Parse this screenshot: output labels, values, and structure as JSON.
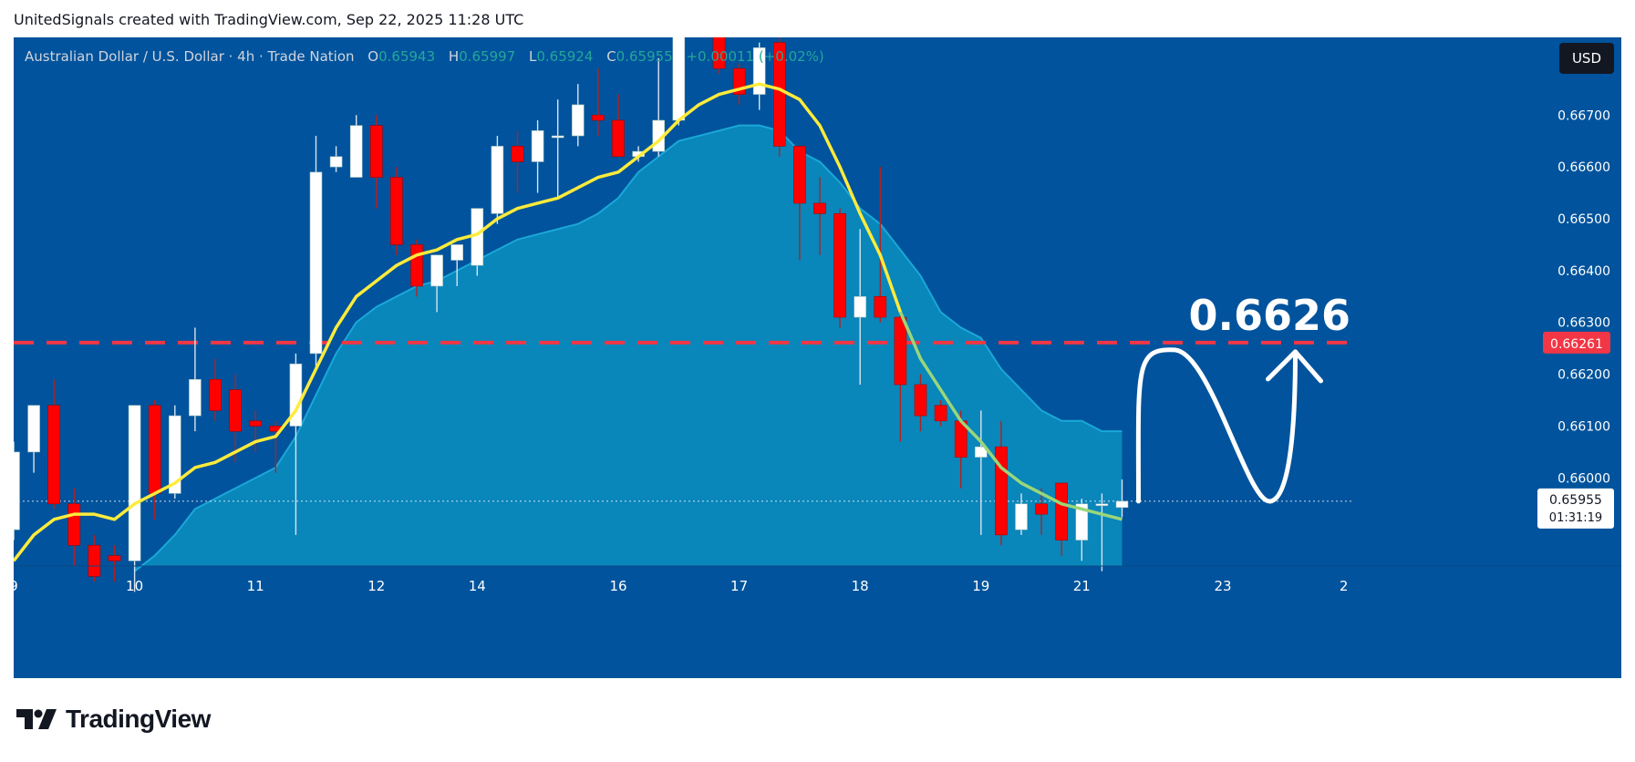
{
  "caption": "UnitedSignals created with TradingView.com, Sep 22, 2025 11:28 UTC",
  "legend": {
    "symbol": "Australian Dollar / U.S. Dollar · 4h · Trade Nation",
    "o_label": "O",
    "o_value": "0.65943",
    "h_label": "H",
    "h_value": "0.65997",
    "l_label": "L",
    "l_value": "0.65924",
    "c_label": "C",
    "c_value": "0.65955",
    "change": "+0.00011 (+0.02%)"
  },
  "currency_button": "USD",
  "footer_brand": "TradingView",
  "colors": {
    "background": "#00539c",
    "up": "#ffffff",
    "down": "#ff0000",
    "ema_fast": "#ffeb3b",
    "ema_fast_late": "#9ad67a",
    "cloud_fill": "#0a8fc0",
    "cloud_edge": "#1aa8d8",
    "level_line": "#f23645",
    "last_price_line": "#ffffff"
  },
  "chart_data": {
    "type": "candlestick",
    "y_axis": {
      "tick_labels": [
        "0.66700",
        "0.66600",
        "0.66500",
        "0.66400",
        "0.66300",
        "0.66200",
        "0.66100",
        "0.66000"
      ],
      "range": [
        0.6583,
        0.6685
      ]
    },
    "x_axis": {
      "tick_labels": [
        "9",
        "10",
        "11",
        "12",
        "14",
        "16",
        "17",
        "18",
        "19",
        "21",
        "23",
        "2"
      ]
    },
    "resistance_level": {
      "value": 0.66261,
      "label": "0.66261",
      "annotation": "0.6626"
    },
    "last_price": {
      "value": 0.65955,
      "label": "0.65955",
      "countdown": "01:31:19"
    },
    "candles": [
      {
        "o": 0.659,
        "h": 0.6607,
        "l": 0.6588,
        "c": 0.6605
      },
      {
        "o": 0.6605,
        "h": 0.6614,
        "l": 0.6601,
        "c": 0.6614
      },
      {
        "o": 0.6614,
        "h": 0.6619,
        "l": 0.6594,
        "c": 0.6595
      },
      {
        "o": 0.6595,
        "h": 0.6598,
        "l": 0.6583,
        "c": 0.6587
      },
      {
        "o": 0.6587,
        "h": 0.6589,
        "l": 0.658,
        "c": 0.6581
      },
      {
        "o": 0.6585,
        "h": 0.6587,
        "l": 0.658,
        "c": 0.6584
      },
      {
        "o": 0.6584,
        "h": 0.6614,
        "l": 0.6578,
        "c": 0.6614
      },
      {
        "o": 0.6614,
        "h": 0.6615,
        "l": 0.6592,
        "c": 0.6597
      },
      {
        "o": 0.6597,
        "h": 0.6614,
        "l": 0.6596,
        "c": 0.6612
      },
      {
        "o": 0.6612,
        "h": 0.6629,
        "l": 0.6609,
        "c": 0.6619
      },
      {
        "o": 0.6619,
        "h": 0.6623,
        "l": 0.6611,
        "c": 0.6613
      },
      {
        "o": 0.6617,
        "h": 0.662,
        "l": 0.6603,
        "c": 0.6609
      },
      {
        "o": 0.6611,
        "h": 0.6613,
        "l": 0.6605,
        "c": 0.661
      },
      {
        "o": 0.661,
        "h": 0.6611,
        "l": 0.6601,
        "c": 0.6609
      },
      {
        "o": 0.661,
        "h": 0.6624,
        "l": 0.6589,
        "c": 0.6622
      },
      {
        "o": 0.6624,
        "h": 0.6666,
        "l": 0.6621,
        "c": 0.6659
      },
      {
        "o": 0.666,
        "h": 0.6664,
        "l": 0.6659,
        "c": 0.6662
      },
      {
        "o": 0.6658,
        "h": 0.667,
        "l": 0.6658,
        "c": 0.6668
      },
      {
        "o": 0.6668,
        "h": 0.667,
        "l": 0.6652,
        "c": 0.6658
      },
      {
        "o": 0.6658,
        "h": 0.666,
        "l": 0.6643,
        "c": 0.6645
      },
      {
        "o": 0.6645,
        "h": 0.6646,
        "l": 0.6635,
        "c": 0.6637
      },
      {
        "o": 0.6637,
        "h": 0.6643,
        "l": 0.6632,
        "c": 0.6643
      },
      {
        "o": 0.6642,
        "h": 0.6645,
        "l": 0.6637,
        "c": 0.6645
      },
      {
        "o": 0.6641,
        "h": 0.6652,
        "l": 0.6639,
        "c": 0.6652
      },
      {
        "o": 0.6651,
        "h": 0.6666,
        "l": 0.6649,
        "c": 0.6664
      },
      {
        "o": 0.6664,
        "h": 0.6667,
        "l": 0.6655,
        "c": 0.6661
      },
      {
        "o": 0.6661,
        "h": 0.6669,
        "l": 0.6655,
        "c": 0.6667
      },
      {
        "o": 0.6666,
        "h": 0.6673,
        "l": 0.6654,
        "c": 0.6666
      },
      {
        "o": 0.6666,
        "h": 0.6676,
        "l": 0.6664,
        "c": 0.6672
      },
      {
        "o": 0.667,
        "h": 0.6679,
        "l": 0.6666,
        "c": 0.6669
      },
      {
        "o": 0.6669,
        "h": 0.6674,
        "l": 0.6663,
        "c": 0.6662
      },
      {
        "o": 0.6662,
        "h": 0.6664,
        "l": 0.6661,
        "c": 0.6663
      },
      {
        "o": 0.6663,
        "h": 0.6681,
        "l": 0.6662,
        "c": 0.6669
      },
      {
        "o": 0.6669,
        "h": 0.6691,
        "l": 0.6668,
        "c": 0.6691
      },
      {
        "o": 0.6691,
        "h": 0.6695,
        "l": 0.6686,
        "c": 0.6695
      },
      {
        "o": 0.6691,
        "h": 0.6692,
        "l": 0.6678,
        "c": 0.6679
      },
      {
        "o": 0.6679,
        "h": 0.668,
        "l": 0.6672,
        "c": 0.6674
      },
      {
        "o": 0.6674,
        "h": 0.6684,
        "l": 0.6671,
        "c": 0.6683
      },
      {
        "o": 0.6684,
        "h": 0.6694,
        "l": 0.6662,
        "c": 0.6664
      },
      {
        "o": 0.6664,
        "h": 0.6664,
        "l": 0.6642,
        "c": 0.6653
      },
      {
        "o": 0.6653,
        "h": 0.6658,
        "l": 0.6643,
        "c": 0.6651
      },
      {
        "o": 0.6651,
        "h": 0.6652,
        "l": 0.6629,
        "c": 0.6631
      },
      {
        "o": 0.6631,
        "h": 0.6648,
        "l": 0.6618,
        "c": 0.6635
      },
      {
        "o": 0.6635,
        "h": 0.666,
        "l": 0.663,
        "c": 0.6631
      },
      {
        "o": 0.6631,
        "h": 0.6632,
        "l": 0.6607,
        "c": 0.6618
      },
      {
        "o": 0.6618,
        "h": 0.662,
        "l": 0.6609,
        "c": 0.6612
      },
      {
        "o": 0.6614,
        "h": 0.6615,
        "l": 0.661,
        "c": 0.6611
      },
      {
        "o": 0.6611,
        "h": 0.6613,
        "l": 0.6598,
        "c": 0.6604
      },
      {
        "o": 0.6604,
        "h": 0.6613,
        "l": 0.6589,
        "c": 0.6606
      },
      {
        "o": 0.6606,
        "h": 0.6611,
        "l": 0.6587,
        "c": 0.6589
      },
      {
        "o": 0.659,
        "h": 0.6597,
        "l": 0.6589,
        "c": 0.6595
      },
      {
        "o": 0.6595,
        "h": 0.6598,
        "l": 0.6589,
        "c": 0.6593
      },
      {
        "o": 0.6599,
        "h": 0.6599,
        "l": 0.6585,
        "c": 0.6588
      },
      {
        "o": 0.6588,
        "h": 0.6596,
        "l": 0.6584,
        "c": 0.6595
      },
      {
        "o": 0.6595,
        "h": 0.6597,
        "l": 0.6582,
        "c": 0.6595
      },
      {
        "o": 0.65943,
        "h": 0.65997,
        "l": 0.65924,
        "c": 0.65955
      }
    ],
    "ema_fast": [
      0.6584,
      0.6589,
      0.6592,
      0.6593,
      0.6593,
      0.6592,
      0.6595,
      0.6597,
      0.6599,
      0.6602,
      0.6603,
      0.6605,
      0.6607,
      0.6608,
      0.6613,
      0.6621,
      0.6629,
      0.6635,
      0.6638,
      0.6641,
      0.6643,
      0.6644,
      0.6646,
      0.6647,
      0.665,
      0.6652,
      0.6653,
      0.6654,
      0.6656,
      0.6658,
      0.6659,
      0.6662,
      0.6665,
      0.6669,
      0.6672,
      0.6674,
      0.6675,
      0.6676,
      0.6675,
      0.6673,
      0.6668,
      0.666,
      0.6651,
      0.6643,
      0.6632,
      0.6623,
      0.6617,
      0.6611,
      0.6607,
      0.6602,
      0.6599,
      0.6597,
      0.6595,
      0.6594,
      0.6593,
      0.6592
    ],
    "cloud_upper": [
      null,
      null,
      null,
      null,
      null,
      null,
      0.6582,
      0.6585,
      0.6589,
      0.6594,
      0.6596,
      0.6598,
      0.66,
      0.6602,
      0.6608,
      0.6616,
      0.6624,
      0.663,
      0.6633,
      0.6635,
      0.6637,
      0.6638,
      0.664,
      0.6642,
      0.6644,
      0.6646,
      0.6647,
      0.6648,
      0.6649,
      0.6651,
      0.6654,
      0.6659,
      0.6662,
      0.6665,
      0.6666,
      0.6667,
      0.6668,
      0.6668,
      0.6667,
      0.6663,
      0.6661,
      0.6657,
      0.6652,
      0.6649,
      0.6644,
      0.6639,
      0.6632,
      0.6629,
      0.6627,
      0.6621,
      0.6617,
      0.6613,
      0.6611,
      0.6611,
      0.6609,
      0.6609
    ]
  },
  "labels": {
    "price_tag_level": "0.66261",
    "price_tag_last": "0.65955",
    "countdown": "01:31:19",
    "annotation_big": "0.6626"
  }
}
